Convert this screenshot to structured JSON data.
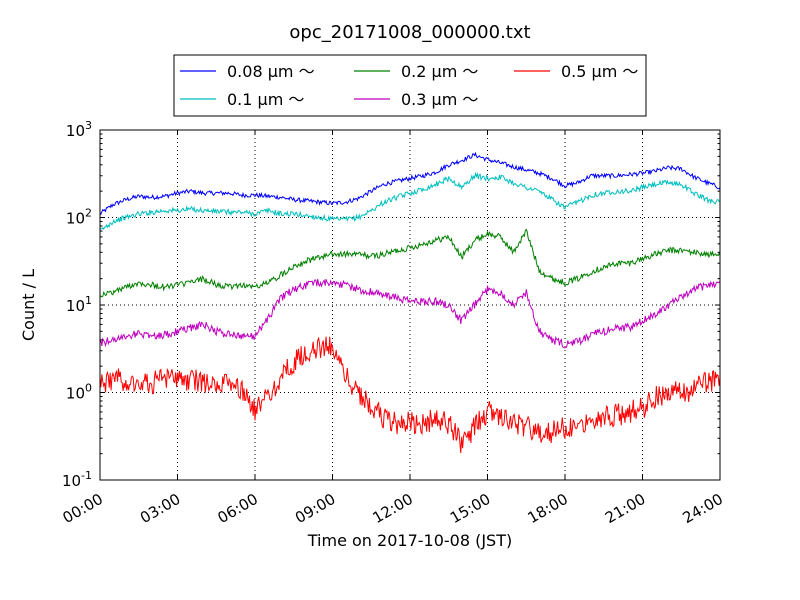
{
  "chart_data": {
    "type": "line",
    "title": "opc_20171008_000000.txt",
    "xlabel": "Time on 2017-10-08 (JST)",
    "ylabel": "Count / L",
    "y_scale": "log",
    "xlim": [
      0,
      24
    ],
    "ylim": [
      0.1,
      1000
    ],
    "grid": true,
    "legend_position": "top-center, outside plot",
    "x_ticks": [
      {
        "value": 0,
        "label": "00:00"
      },
      {
        "value": 3,
        "label": "03:00"
      },
      {
        "value": 6,
        "label": "06:00"
      },
      {
        "value": 9,
        "label": "09:00"
      },
      {
        "value": 12,
        "label": "12:00"
      },
      {
        "value": 15,
        "label": "15:00"
      },
      {
        "value": 18,
        "label": "18:00"
      },
      {
        "value": 21,
        "label": "21:00"
      },
      {
        "value": 24,
        "label": "24:00"
      }
    ],
    "y_ticks": [
      {
        "value": 0.1,
        "base": "10",
        "exp": "-1"
      },
      {
        "value": 1,
        "base": "10",
        "exp": "0"
      },
      {
        "value": 10,
        "base": "10",
        "exp": "1"
      },
      {
        "value": 100,
        "base": "10",
        "exp": "2"
      },
      {
        "value": 1000,
        "base": "10",
        "exp": "3"
      }
    ],
    "x": [
      0,
      0.5,
      1,
      1.5,
      2,
      2.5,
      3,
      3.5,
      4,
      4.5,
      5,
      5.5,
      6,
      6.5,
      7,
      7.5,
      8,
      8.5,
      9,
      9.5,
      10,
      10.5,
      11,
      11.5,
      12,
      12.5,
      13,
      13.5,
      14,
      14.5,
      15,
      15.5,
      16,
      16.5,
      17,
      17.5,
      18,
      18.5,
      19,
      19.5,
      20,
      20.5,
      21,
      21.5,
      22,
      22.5,
      23,
      23.5,
      24
    ],
    "series": [
      {
        "name": "0.08",
        "unit": "μm ～",
        "color": "#0000ff",
        "values": [
          110,
          140,
          160,
          175,
          170,
          175,
          190,
          200,
          190,
          190,
          190,
          180,
          180,
          175,
          170,
          160,
          155,
          150,
          145,
          150,
          165,
          200,
          240,
          260,
          280,
          300,
          330,
          400,
          450,
          520,
          460,
          420,
          380,
          350,
          320,
          280,
          230,
          250,
          300,
          300,
          300,
          310,
          320,
          340,
          370,
          360,
          290,
          250,
          220
        ]
      },
      {
        "name": "0.1",
        "unit": "μm ～",
        "color": "#00bfbf",
        "values": [
          70,
          90,
          100,
          110,
          115,
          120,
          120,
          125,
          120,
          118,
          115,
          115,
          110,
          120,
          110,
          110,
          105,
          100,
          95,
          95,
          100,
          120,
          150,
          170,
          190,
          210,
          240,
          280,
          220,
          300,
          280,
          290,
          250,
          220,
          200,
          160,
          130,
          150,
          180,
          190,
          200,
          200,
          220,
          240,
          250,
          240,
          190,
          160,
          150
        ]
      },
      {
        "name": "0.2",
        "unit": "μm ～",
        "color": "#008000",
        "values": [
          13,
          14,
          16,
          18,
          17,
          16,
          17,
          18,
          20,
          17,
          16,
          17,
          16,
          18,
          22,
          28,
          32,
          35,
          38,
          38,
          38,
          36,
          38,
          42,
          45,
          50,
          55,
          60,
          35,
          55,
          65,
          60,
          40,
          70,
          25,
          20,
          18,
          20,
          24,
          27,
          30,
          30,
          34,
          38,
          42,
          42,
          40,
          38,
          37
        ]
      },
      {
        "name": "0.3",
        "unit": "μm ～",
        "color": "#bf00bf",
        "values": [
          3.7,
          4.0,
          4.4,
          4.7,
          4.5,
          4.5,
          5.0,
          5.5,
          6.0,
          5.0,
          4.6,
          4.5,
          4.4,
          7.0,
          12,
          15,
          17,
          18,
          18,
          17,
          15,
          14,
          13,
          12,
          11,
          11,
          11,
          10,
          6.5,
          10,
          15,
          14,
          10,
          14,
          5,
          4,
          3.5,
          3.8,
          4.5,
          5.0,
          5.5,
          5.5,
          6.5,
          8.0,
          10,
          12,
          15,
          17,
          18
        ]
      },
      {
        "name": "0.5",
        "unit": "μm ～",
        "color": "#ff0000",
        "values": [
          1.3,
          1.4,
          1.4,
          1.3,
          1.3,
          1.4,
          1.4,
          1.4,
          1.3,
          1.2,
          1.2,
          1.1,
          0.6,
          0.9,
          1.5,
          2.2,
          2.8,
          3.2,
          3.4,
          1.6,
          1.0,
          0.7,
          0.5,
          0.45,
          0.45,
          0.45,
          0.5,
          0.45,
          0.25,
          0.4,
          0.6,
          0.55,
          0.45,
          0.4,
          0.35,
          0.35,
          0.4,
          0.45,
          0.5,
          0.55,
          0.55,
          0.6,
          0.65,
          0.9,
          1.0,
          1.0,
          1.1,
          1.3,
          1.5
        ]
      }
    ]
  }
}
